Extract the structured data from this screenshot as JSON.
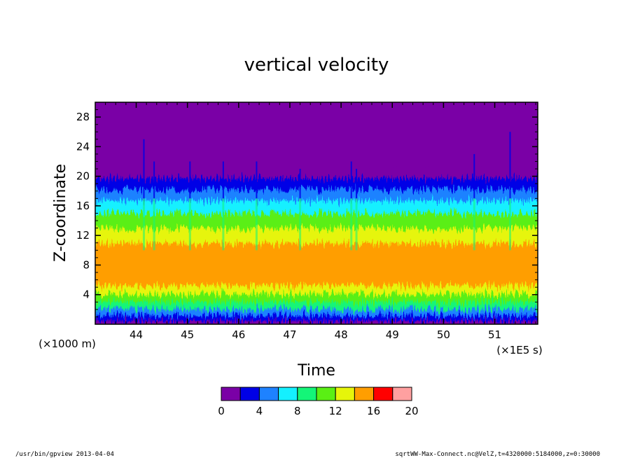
{
  "chart_data": {
    "type": "heatmap",
    "title": "vertical velocity",
    "xlabel": "Time",
    "ylabel": "Z-coordinate",
    "x_unit": "(×1E5 s)",
    "y_unit": "(×1000 m)",
    "xlim": [
      43.2,
      51.84
    ],
    "ylim": [
      0,
      30
    ],
    "x_ticks": [
      44,
      45,
      46,
      47,
      48,
      49,
      50,
      51
    ],
    "y_ticks": [
      4,
      8,
      12,
      16,
      20,
      24,
      28
    ],
    "colorbar": {
      "levels": [
        0,
        2,
        4,
        6,
        8,
        10,
        12,
        14,
        16,
        18,
        20
      ],
      "tick_labels": [
        0,
        4,
        8,
        12,
        16,
        20
      ],
      "colors": [
        "#7a00a6",
        "#0000e6",
        "#1e82ff",
        "#14f0ff",
        "#14f578",
        "#5aef14",
        "#e6f50a",
        "#ff9e00",
        "#ff0000",
        "#ffa0a0"
      ]
    },
    "vertical_profile": [
      {
        "z": 0.2,
        "value": 1.0
      },
      {
        "z": 0.8,
        "value": 3.0
      },
      {
        "z": 1.6,
        "value": 5.5
      },
      {
        "z": 2.6,
        "value": 8.5
      },
      {
        "z": 3.6,
        "value": 11.0
      },
      {
        "z": 4.6,
        "value": 13.2
      },
      {
        "z": 6.0,
        "value": 14.6
      },
      {
        "z": 8.0,
        "value": 15.0
      },
      {
        "z": 10.0,
        "value": 14.2
      },
      {
        "z": 12.0,
        "value": 12.4
      },
      {
        "z": 14.0,
        "value": 10.0
      },
      {
        "z": 16.0,
        "value": 7.0
      },
      {
        "z": 17.5,
        "value": 4.6
      },
      {
        "z": 19.0,
        "value": 2.6
      },
      {
        "z": 20.5,
        "value": 1.2
      },
      {
        "z": 22.0,
        "value": 0.5
      },
      {
        "z": 30.0,
        "value": 0.3
      }
    ],
    "bursts": [
      {
        "t": 44.15,
        "zmax": 25
      },
      {
        "t": 44.35,
        "zmax": 22
      },
      {
        "t": 45.05,
        "zmax": 22
      },
      {
        "t": 45.7,
        "zmax": 22
      },
      {
        "t": 46.35,
        "zmax": 22
      },
      {
        "t": 47.2,
        "zmax": 21
      },
      {
        "t": 48.2,
        "zmax": 22
      },
      {
        "t": 48.3,
        "zmax": 21
      },
      {
        "t": 50.6,
        "zmax": 23
      },
      {
        "t": 51.3,
        "zmax": 26
      }
    ]
  },
  "footer": {
    "left": "/usr/bin/gpview   2013-04-04",
    "right": "sqrtWW-Max-Connect.nc@VelZ,t=4320000:5184000,z=0:30000"
  }
}
